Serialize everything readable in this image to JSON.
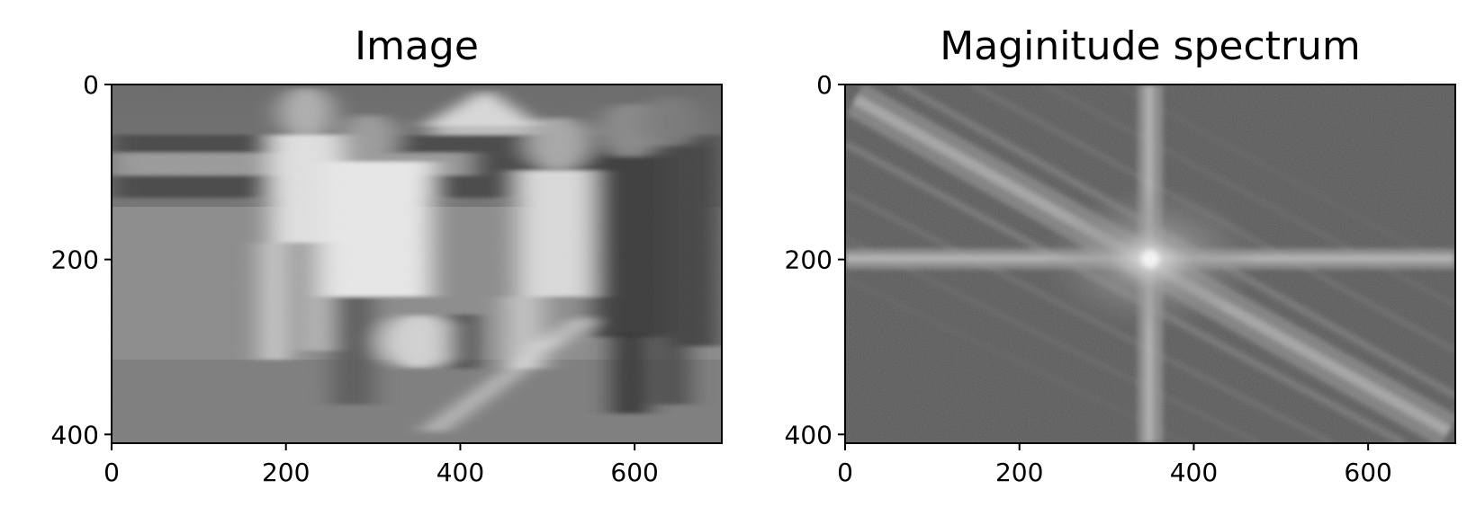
{
  "chart_data": [
    {
      "type": "image",
      "title": "Image",
      "xlabel": "",
      "ylabel": "",
      "xlim": [
        0,
        700
      ],
      "ylim": [
        410,
        0
      ],
      "xticks": [
        0,
        200,
        400,
        600
      ],
      "yticks": [
        0,
        200,
        400
      ],
      "colormap": "gray",
      "grid": false,
      "content": "grayscale motion-blurred photo of lacrosse players"
    },
    {
      "type": "image",
      "title": "Maginitude spectrum",
      "xlabel": "",
      "ylabel": "",
      "xlim": [
        0,
        700
      ],
      "ylim": [
        410,
        0
      ],
      "xticks": [
        0,
        200,
        400,
        600
      ],
      "yticks": [
        0,
        200,
        400
      ],
      "colormap": "gray",
      "grid": false,
      "content": "log magnitude of centered 2D Fourier transform with bright cross at center and diagonal streaks"
    }
  ]
}
